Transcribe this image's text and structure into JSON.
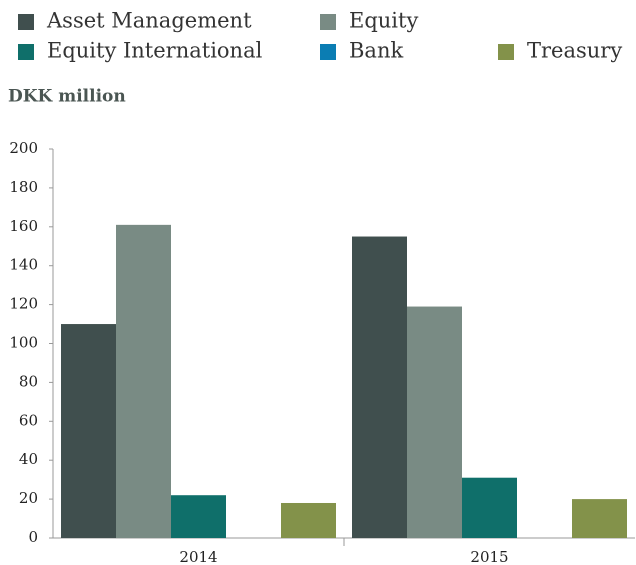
{
  "chart_data": {
    "type": "bar",
    "y_label": "DKK million",
    "categories": [
      "2014",
      "2015"
    ],
    "series": [
      {
        "name": "Asset Management",
        "color": "#404f4e",
        "values": [
          110,
          155
        ]
      },
      {
        "name": "Equity",
        "color": "#798b84",
        "values": [
          161,
          119
        ]
      },
      {
        "name": "Equity International",
        "color": "#0f6f6a",
        "values": [
          22,
          31
        ]
      },
      {
        "name": "Bank",
        "color": "#0b7db3",
        "values": [
          0,
          0
        ]
      },
      {
        "name": "Treasury",
        "color": "#83924a",
        "values": [
          18,
          20
        ]
      }
    ],
    "ylim": [
      0,
      200
    ],
    "yticks": [
      0,
      20,
      40,
      60,
      80,
      100,
      120,
      140,
      160,
      180,
      200
    ],
    "grid": false
  }
}
